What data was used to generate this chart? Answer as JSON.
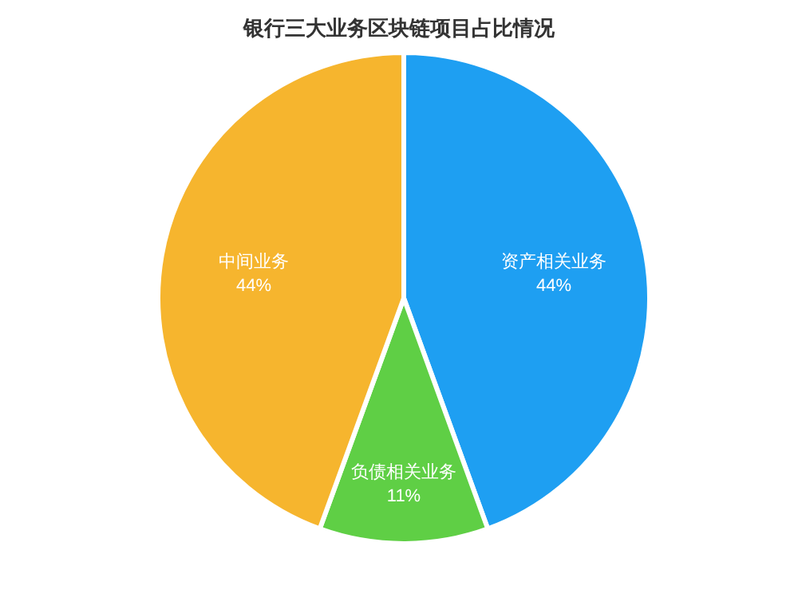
{
  "chart_data": {
    "type": "pie",
    "title": "银行三大业务区块链项目占比情况",
    "categories": [
      "资产相关业务",
      "负债相关业务",
      "中间业务"
    ],
    "values": [
      44,
      11,
      44
    ],
    "colors": [
      "#1e9ff2",
      "#5fcf45",
      "#f6b52e"
    ],
    "value_labels": [
      "44%",
      "11%",
      "44%"
    ],
    "legend": false
  }
}
